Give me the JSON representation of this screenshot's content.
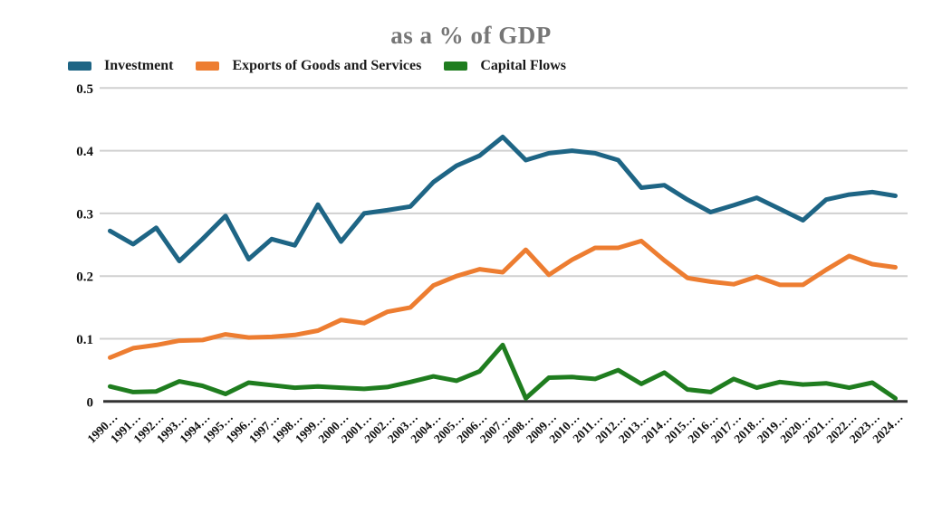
{
  "title": "as a % of GDP",
  "colors": {
    "investment": "#1e6585",
    "exports": "#ed7d31",
    "capital_flows": "#1f7d1f",
    "title_text": "#767676",
    "gridline": "#d0d0d0",
    "zero_axis": "#333333",
    "tick_text": "#111111"
  },
  "chart_data": {
    "type": "line",
    "title": "as a % of GDP",
    "xlabel": "",
    "ylabel": "",
    "ylim": [
      0,
      0.5
    ],
    "yticks": [
      "0.5",
      "0.4",
      "0.3",
      "0.2",
      "0.1",
      "0"
    ],
    "grid": true,
    "legend_position": "top-left",
    "categories": [
      "1990…",
      "1991…",
      "1992…",
      "1993…",
      "1994…",
      "1995…",
      "1996…",
      "1997…",
      "1998…",
      "1999…",
      "2000…",
      "2001…",
      "2002…",
      "2003…",
      "2004…",
      "2005…",
      "2006…",
      "2007…",
      "2008…",
      "2009…",
      "2010…",
      "2011…",
      "2012…",
      "2013…",
      "2014…",
      "2015…",
      "2016…",
      "2017…",
      "2018…",
      "2019…",
      "2020…",
      "2021…",
      "2022…",
      "2023…",
      "2024…"
    ],
    "series": [
      {
        "name": "Investment",
        "color": "#1e6585",
        "values": [
          0.272,
          0.251,
          0.277,
          0.224,
          0.259,
          0.296,
          0.227,
          0.259,
          0.249,
          0.314,
          0.255,
          0.3,
          0.305,
          0.311,
          0.35,
          0.376,
          0.392,
          0.422,
          0.385,
          0.396,
          0.4,
          0.396,
          0.385,
          0.341,
          0.345,
          0.322,
          0.302,
          0.313,
          0.325,
          0.307,
          0.289,
          0.322,
          0.33,
          0.334,
          0.328
        ]
      },
      {
        "name": "Exports of Goods and Services",
        "color": "#ed7d31",
        "values": [
          0.07,
          0.085,
          0.09,
          0.097,
          0.098,
          0.107,
          0.102,
          0.103,
          0.106,
          0.113,
          0.13,
          0.125,
          0.143,
          0.15,
          0.185,
          0.2,
          0.211,
          0.206,
          0.242,
          0.202,
          0.226,
          0.245,
          0.245,
          0.256,
          0.225,
          0.197,
          0.191,
          0.187,
          0.199,
          0.186,
          0.186,
          0.21,
          0.232,
          0.219,
          0.214
        ]
      },
      {
        "name": "Capital Flows",
        "color": "#1f7d1f",
        "values": [
          0.024,
          0.015,
          0.016,
          0.032,
          0.025,
          0.012,
          0.03,
          0.026,
          0.022,
          0.024,
          0.022,
          0.02,
          0.023,
          0.031,
          0.04,
          0.033,
          0.048,
          0.09,
          0.005,
          0.038,
          0.039,
          0.036,
          0.05,
          0.028,
          0.046,
          0.019,
          0.015,
          0.036,
          0.022,
          0.031,
          0.027,
          0.029,
          0.022,
          0.03,
          0.005
        ]
      }
    ]
  }
}
